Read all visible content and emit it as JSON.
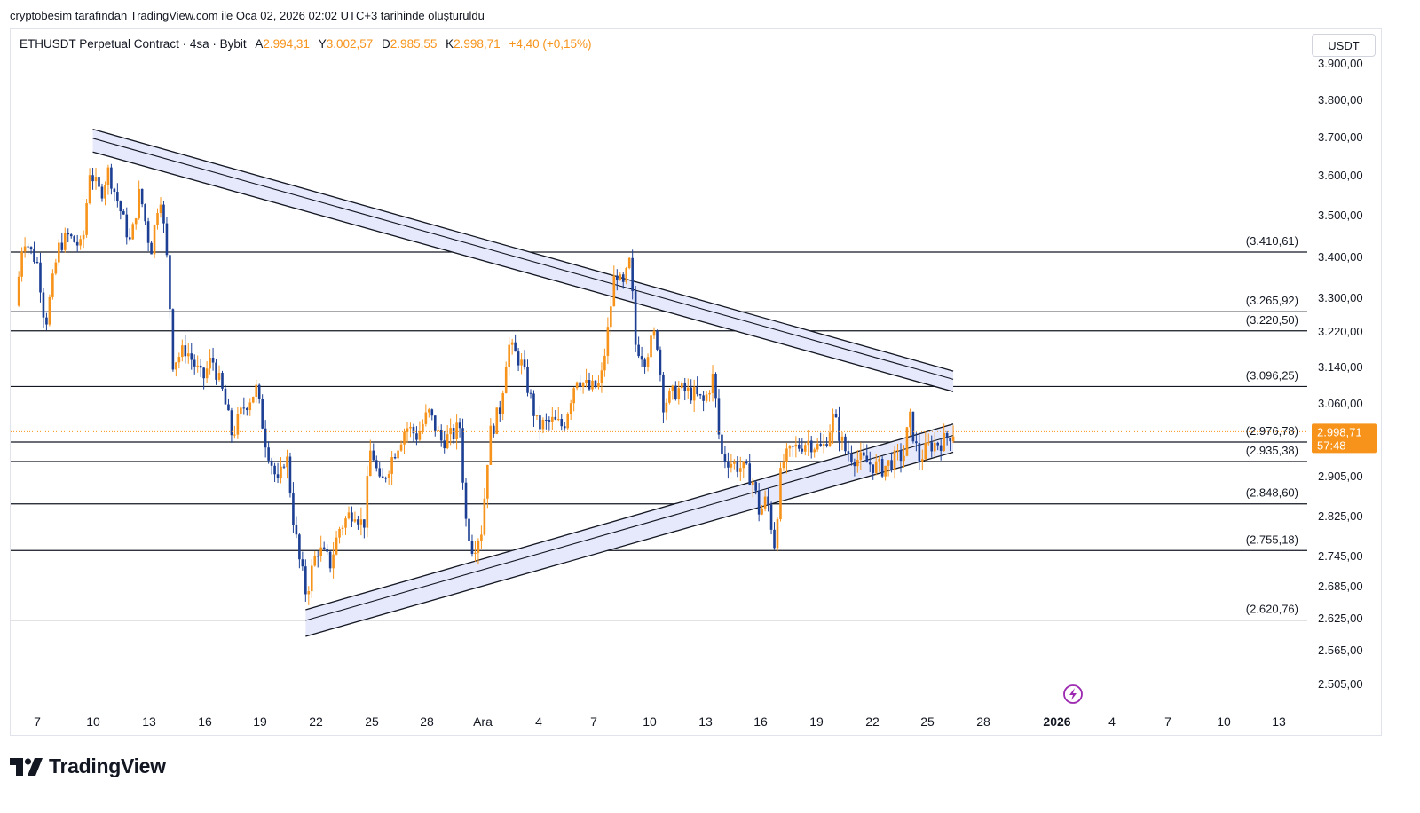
{
  "header": {
    "caption": "cryptobesim tarafından TradingView.com ile Oca 02, 2026 02:02 UTC+3 tarihinde oluşturuldu"
  },
  "legend": {
    "symbol": "ETHUSDT Perpetual Contract · 4sa · Bybit",
    "open_label": "A",
    "open_value": "2.994,31",
    "high_label": "Y",
    "high_value": "3.002,57",
    "low_label": "D",
    "low_value": "2.985,55",
    "close_label": "K",
    "close_value": "2.998,71",
    "change": "+4,40 (+0,15%)"
  },
  "currency": "USDT",
  "brand": {
    "name": "TradingView"
  },
  "colors": {
    "up": "#f7931a",
    "down": "#1c3f94",
    "channel_fill": "#e6e9fb",
    "line": "#131722",
    "price_tag": "#f7931a",
    "alert_icon": "#9c27b0"
  },
  "chart_data": {
    "type": "candlestick",
    "title": "ETHUSDT Perpetual Contract · 4sa · Bybit",
    "ylabel": "USDT",
    "y_ticks": [
      {
        "value": 3900,
        "label": "3.900,00"
      },
      {
        "value": 3800,
        "label": "3.800,00"
      },
      {
        "value": 3700,
        "label": "3.700,00"
      },
      {
        "value": 3600,
        "label": "3.600,00"
      },
      {
        "value": 3500,
        "label": "3.500,00"
      },
      {
        "value": 3400,
        "label": "3.400,00"
      },
      {
        "value": 3300,
        "label": "3.300,00"
      },
      {
        "value": 3220,
        "label": "3.220,00"
      },
      {
        "value": 3140,
        "label": "3.140,00"
      },
      {
        "value": 3060,
        "label": "3.060,00"
      },
      {
        "value": 2905,
        "label": "2.905,00"
      },
      {
        "value": 2825,
        "label": "2.825,00"
      },
      {
        "value": 2745,
        "label": "2.745,00"
      },
      {
        "value": 2685,
        "label": "2.685,00"
      },
      {
        "value": 2625,
        "label": "2.625,00"
      },
      {
        "value": 2565,
        "label": "2.565,00"
      },
      {
        "value": 2505,
        "label": "2.505,00"
      }
    ],
    "x_ticks": [
      {
        "label": "7",
        "bold": false
      },
      {
        "label": "10",
        "bold": false
      },
      {
        "label": "13",
        "bold": false
      },
      {
        "label": "16",
        "bold": false
      },
      {
        "label": "19",
        "bold": false
      },
      {
        "label": "22",
        "bold": false
      },
      {
        "label": "25",
        "bold": false
      },
      {
        "label": "28",
        "bold": false
      },
      {
        "label": "Ara",
        "bold": false
      },
      {
        "label": "4",
        "bold": false
      },
      {
        "label": "7",
        "bold": false
      },
      {
        "label": "10",
        "bold": false
      },
      {
        "label": "13",
        "bold": false
      },
      {
        "label": "16",
        "bold": false
      },
      {
        "label": "19",
        "bold": false
      },
      {
        "label": "22",
        "bold": false
      },
      {
        "label": "25",
        "bold": false
      },
      {
        "label": "28",
        "bold": false
      },
      {
        "label": "2026",
        "bold": true
      },
      {
        "label": "4",
        "bold": false
      },
      {
        "label": "7",
        "bold": false
      },
      {
        "label": "10",
        "bold": false
      },
      {
        "label": "13",
        "bold": false
      }
    ],
    "horizontal_levels": [
      {
        "value": 3410.61,
        "label": "(3.410,61)"
      },
      {
        "value": 3265.92,
        "label": "(3.265,92)"
      },
      {
        "value": 3220.5,
        "label": "(3.220,50)"
      },
      {
        "value": 3096.25,
        "label": "(3.096,25)"
      },
      {
        "value": 2976.78,
        "label": "(2.976,78)"
      },
      {
        "value": 2935.38,
        "label": "(2.935,38)"
      },
      {
        "value": 2848.6,
        "label": "(2.848,60)"
      },
      {
        "value": 2755.18,
        "label": "(2.755,18)"
      },
      {
        "value": 2620.76,
        "label": "(2.620,76)"
      }
    ],
    "current_price": {
      "value": 2998.71,
      "label": "2.998,71",
      "countdown": "57:48"
    },
    "trend_channels": [
      {
        "name": "descending-resistance",
        "start_day": 10,
        "end_day": 56.5,
        "upper": [
          3720,
          3130
        ],
        "lower": [
          3660,
          3085
        ]
      },
      {
        "name": "ascending-support",
        "start_day": 21.5,
        "end_day": 56.5,
        "upper": [
          2640,
          3015
        ],
        "lower": [
          2590,
          2955
        ]
      }
    ],
    "anchors": [
      {
        "day": 6.0,
        "price": 3280
      },
      {
        "day": 6.4,
        "price": 3450
      },
      {
        "day": 7.2,
        "price": 3380
      },
      {
        "day": 7.6,
        "price": 3230
      },
      {
        "day": 8.3,
        "price": 3420
      },
      {
        "day": 8.8,
        "price": 3450
      },
      {
        "day": 9.6,
        "price": 3420
      },
      {
        "day": 10.0,
        "price": 3610
      },
      {
        "day": 10.6,
        "price": 3550
      },
      {
        "day": 11.0,
        "price": 3610
      },
      {
        "day": 11.6,
        "price": 3520
      },
      {
        "day": 12.2,
        "price": 3430
      },
      {
        "day": 12.7,
        "price": 3560
      },
      {
        "day": 13.3,
        "price": 3410
      },
      {
        "day": 13.8,
        "price": 3560
      },
      {
        "day": 14.2,
        "price": 3380
      },
      {
        "day": 14.5,
        "price": 3150
      },
      {
        "day": 15.2,
        "price": 3180
      },
      {
        "day": 16.1,
        "price": 3110
      },
      {
        "day": 16.6,
        "price": 3160
      },
      {
        "day": 17.2,
        "price": 3080
      },
      {
        "day": 17.7,
        "price": 2990
      },
      {
        "day": 18.3,
        "price": 3050
      },
      {
        "day": 19.0,
        "price": 3090
      },
      {
        "day": 19.5,
        "price": 2980
      },
      {
        "day": 20.2,
        "price": 2880
      },
      {
        "day": 20.6,
        "price": 2960
      },
      {
        "day": 21.0,
        "price": 2820
      },
      {
        "day": 21.3,
        "price": 2740
      },
      {
        "day": 21.7,
        "price": 2670
      },
      {
        "day": 22.3,
        "price": 2760
      },
      {
        "day": 23.0,
        "price": 2730
      },
      {
        "day": 23.5,
        "price": 2800
      },
      {
        "day": 24.3,
        "price": 2840
      },
      {
        "day": 24.8,
        "price": 2800
      },
      {
        "day": 25.2,
        "price": 2970
      },
      {
        "day": 25.7,
        "price": 2880
      },
      {
        "day": 26.4,
        "price": 2950
      },
      {
        "day": 27.1,
        "price": 3010
      },
      {
        "day": 27.7,
        "price": 2990
      },
      {
        "day": 28.3,
        "price": 3040
      },
      {
        "day": 29.0,
        "price": 2980
      },
      {
        "day": 29.6,
        "price": 2990
      },
      {
        "day": 30.0,
        "price": 3010
      },
      {
        "day": 30.3,
        "price": 2820
      },
      {
        "day": 30.7,
        "price": 2760
      },
      {
        "day": 31.2,
        "price": 2800
      },
      {
        "day": 31.6,
        "price": 2990
      },
      {
        "day": 32.2,
        "price": 3050
      },
      {
        "day": 32.6,
        "price": 3190
      },
      {
        "day": 33.3,
        "price": 3150
      },
      {
        "day": 33.7,
        "price": 3090
      },
      {
        "day": 34.2,
        "price": 3010
      },
      {
        "day": 35.0,
        "price": 3020
      },
      {
        "day": 35.6,
        "price": 3010
      },
      {
        "day": 36.3,
        "price": 3120
      },
      {
        "day": 37.0,
        "price": 3090
      },
      {
        "day": 37.6,
        "price": 3100
      },
      {
        "day": 38.0,
        "price": 3220
      },
      {
        "day": 38.4,
        "price": 3370
      },
      {
        "day": 38.8,
        "price": 3320
      },
      {
        "day": 39.2,
        "price": 3390
      },
      {
        "day": 39.5,
        "price": 3190
      },
      {
        "day": 40.0,
        "price": 3160
      },
      {
        "day": 40.6,
        "price": 3220
      },
      {
        "day": 41.0,
        "price": 3060
      },
      {
        "day": 41.8,
        "price": 3090
      },
      {
        "day": 42.6,
        "price": 3080
      },
      {
        "day": 43.2,
        "price": 3060
      },
      {
        "day": 43.7,
        "price": 3120
      },
      {
        "day": 44.1,
        "price": 2950
      },
      {
        "day": 44.8,
        "price": 2930
      },
      {
        "day": 45.3,
        "price": 2920
      },
      {
        "day": 45.8,
        "price": 2900
      },
      {
        "day": 46.2,
        "price": 2830
      },
      {
        "day": 46.6,
        "price": 2860
      },
      {
        "day": 47.0,
        "price": 2770
      },
      {
        "day": 47.4,
        "price": 2930
      },
      {
        "day": 48.0,
        "price": 2960
      },
      {
        "day": 48.8,
        "price": 2980
      },
      {
        "day": 49.6,
        "price": 2960
      },
      {
        "day": 50.2,
        "price": 3030
      },
      {
        "day": 50.8,
        "price": 2960
      },
      {
        "day": 51.5,
        "price": 2940
      },
      {
        "day": 52.2,
        "price": 2930
      },
      {
        "day": 52.8,
        "price": 2920
      },
      {
        "day": 53.5,
        "price": 2940
      },
      {
        "day": 54.0,
        "price": 2950
      },
      {
        "day": 54.3,
        "price": 3030
      },
      {
        "day": 54.8,
        "price": 2940
      },
      {
        "day": 55.4,
        "price": 2970
      },
      {
        "day": 56.2,
        "price": 2980
      },
      {
        "day": 56.6,
        "price": 2999
      }
    ]
  }
}
